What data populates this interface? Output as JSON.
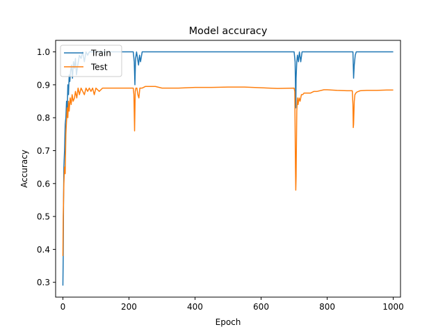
{
  "chart_data": {
    "type": "line",
    "title": "Model accuracy",
    "xlabel": "Epoch",
    "ylabel": "Accuracy",
    "xlim": [
      -22,
      1022
    ],
    "ylim": [
      0.255,
      1.035
    ],
    "xticks": [
      0,
      200,
      400,
      600,
      800,
      1000
    ],
    "yticks": [
      0.3,
      0.4,
      0.5,
      0.6,
      0.7,
      0.8,
      0.9,
      1.0
    ],
    "xtick_labels": [
      "0",
      "200",
      "400",
      "600",
      "800",
      "1000"
    ],
    "ytick_labels": [
      "0.3",
      "0.4",
      "0.5",
      "0.6",
      "0.7",
      "0.8",
      "0.9",
      "1.0"
    ],
    "grid": false,
    "legend_position": "upper-left",
    "series": [
      {
        "name": "Train",
        "color": "#1f77b4",
        "x": [
          0,
          1,
          2,
          3,
          5,
          7,
          9,
          11,
          13,
          15,
          17,
          19,
          21,
          23,
          26,
          29,
          32,
          35,
          38,
          41,
          45,
          50,
          55,
          60,
          65,
          70,
          75,
          80,
          90,
          100,
          120,
          150,
          200,
          213,
          216,
          218,
          220,
          223,
          226,
          229,
          232,
          235,
          240,
          300,
          400,
          500,
          600,
          700,
          703,
          705,
          706,
          708,
          710,
          713,
          716,
          720,
          724,
          728,
          735,
          750,
          800,
          850,
          878,
          880,
          882,
          885,
          888,
          892,
          900,
          950,
          1000
        ],
        "y": [
          0.29,
          0.38,
          0.55,
          0.65,
          0.7,
          0.78,
          0.8,
          0.85,
          0.82,
          0.9,
          0.87,
          0.93,
          0.91,
          0.94,
          0.96,
          0.92,
          0.97,
          0.95,
          0.98,
          0.93,
          0.96,
          0.99,
          0.98,
          1.0,
          0.97,
          1.0,
          0.99,
          1.0,
          1.0,
          1.0,
          1.0,
          1.0,
          1.0,
          1.0,
          0.97,
          0.9,
          0.98,
          1.0,
          0.98,
          0.96,
          0.99,
          0.97,
          1.0,
          1.0,
          1.0,
          1.0,
          1.0,
          1.0,
          0.97,
          0.83,
          0.92,
          0.97,
          0.99,
          0.97,
          1.0,
          0.97,
          1.0,
          1.0,
          1.0,
          1.0,
          1.0,
          1.0,
          1.0,
          0.92,
          0.96,
          0.99,
          1.0,
          1.0,
          1.0,
          1.0,
          1.0
        ]
      },
      {
        "name": "Test",
        "color": "#ff7f0e",
        "x": [
          0,
          1,
          2,
          3,
          5,
          7,
          9,
          11,
          13,
          15,
          17,
          19,
          22,
          25,
          28,
          31,
          35,
          38,
          42,
          46,
          50,
          55,
          60,
          65,
          70,
          75,
          80,
          85,
          90,
          95,
          100,
          110,
          120,
          140,
          160,
          180,
          200,
          210,
          213,
          215,
          217,
          219,
          221,
          224,
          227,
          230,
          233,
          236,
          240,
          250,
          260,
          280,
          300,
          320,
          350,
          400,
          450,
          500,
          550,
          600,
          650,
          700,
          702,
          704,
          705,
          706,
          708,
          710,
          712,
          715,
          718,
          722,
          726,
          730,
          740,
          750,
          760,
          770,
          790,
          800,
          830,
          860,
          876,
          878,
          879,
          880,
          882,
          884,
          887,
          890,
          895,
          900,
          920,
          950,
          980,
          1000
        ],
        "y": [
          0.38,
          0.5,
          0.55,
          0.6,
          0.65,
          0.63,
          0.75,
          0.79,
          0.83,
          0.8,
          0.85,
          0.82,
          0.86,
          0.84,
          0.87,
          0.85,
          0.86,
          0.88,
          0.86,
          0.89,
          0.87,
          0.89,
          0.88,
          0.87,
          0.89,
          0.88,
          0.89,
          0.88,
          0.89,
          0.87,
          0.89,
          0.88,
          0.89,
          0.89,
          0.89,
          0.89,
          0.89,
          0.89,
          0.89,
          0.87,
          0.76,
          0.88,
          0.89,
          0.89,
          0.87,
          0.86,
          0.89,
          0.89,
          0.89,
          0.895,
          0.895,
          0.895,
          0.89,
          0.89,
          0.89,
          0.892,
          0.892,
          0.893,
          0.893,
          0.891,
          0.889,
          0.89,
          0.88,
          0.65,
          0.58,
          0.62,
          0.82,
          0.86,
          0.84,
          0.86,
          0.85,
          0.87,
          0.87,
          0.875,
          0.875,
          0.875,
          0.88,
          0.88,
          0.885,
          0.885,
          0.883,
          0.882,
          0.882,
          0.84,
          0.77,
          0.78,
          0.85,
          0.87,
          0.875,
          0.878,
          0.88,
          0.882,
          0.883,
          0.883,
          0.884,
          0.884
        ]
      }
    ]
  }
}
